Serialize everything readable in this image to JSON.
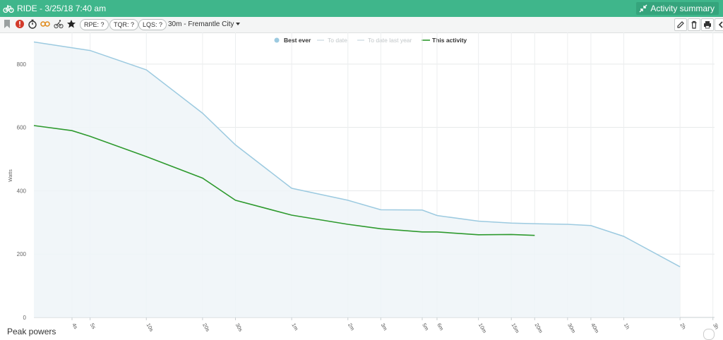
{
  "window": {
    "title": "RIDE - 3/25/18 7:40 am",
    "summary_button": "Activity summary",
    "bike_icon": "bicycle-icon",
    "collapse_icon": "collapse-arrows-icon"
  },
  "toolbar": {
    "icons": [
      "bookmark-icon",
      "alert-icon",
      "stopwatch-icon",
      "goggles-icon",
      "rider-icon",
      "star-icon"
    ],
    "rpe_label": "RPE: ?",
    "tqr_label": "TQR: ?",
    "lqs_label": "LQS: ?",
    "route_label": "30m - Fremantle City",
    "right_icons": [
      "edit-icon",
      "delete-icon",
      "print-icon",
      "back-icon"
    ]
  },
  "colors": {
    "header": "#3fb68b",
    "best_ever": "#9ccae0",
    "this_activity": "#2e9a2e",
    "faded_series": "#c8d7de"
  },
  "chart_data": {
    "type": "line",
    "ylabel": "Watts",
    "xlabel": "",
    "ylim": [
      0,
      900
    ],
    "yticks": [
      0,
      200,
      400,
      600,
      800
    ],
    "x_scale": "log",
    "grid": true,
    "legend_position": "top-center",
    "legend": [
      {
        "name": "Best ever",
        "active": true
      },
      {
        "name": "To date",
        "active": false
      },
      {
        "name": "To date last year",
        "active": false
      },
      {
        "name": "This activity",
        "active": true
      }
    ],
    "x_ticks": [
      {
        "label": "4s",
        "sec": 4
      },
      {
        "label": "5s",
        "sec": 5
      },
      {
        "label": "10s",
        "sec": 10
      },
      {
        "label": "20s",
        "sec": 20
      },
      {
        "label": "30s",
        "sec": 30
      },
      {
        "label": "1m",
        "sec": 60
      },
      {
        "label": "2m",
        "sec": 120
      },
      {
        "label": "3m",
        "sec": 180
      },
      {
        "label": "5m",
        "sec": 300
      },
      {
        "label": "6m",
        "sec": 360
      },
      {
        "label": "10m",
        "sec": 600
      },
      {
        "label": "15m",
        "sec": 900
      },
      {
        "label": "20m",
        "sec": 1200
      },
      {
        "label": "30m",
        "sec": 1800
      },
      {
        "label": "40m",
        "sec": 2400
      },
      {
        "label": "1h",
        "sec": 3600
      },
      {
        "label": "2h",
        "sec": 7200
      },
      {
        "label": "3h",
        "sec": 10800
      }
    ],
    "x_min_sec": 2.5,
    "series": [
      {
        "name": "Best ever",
        "area": true,
        "points": [
          {
            "sec": 2.5,
            "w": 870
          },
          {
            "sec": 5,
            "w": 843
          },
          {
            "sec": 10,
            "w": 782
          },
          {
            "sec": 20,
            "w": 645
          },
          {
            "sec": 30,
            "w": 545
          },
          {
            "sec": 60,
            "w": 408
          },
          {
            "sec": 120,
            "w": 370
          },
          {
            "sec": 180,
            "w": 340
          },
          {
            "sec": 300,
            "w": 339
          },
          {
            "sec": 360,
            "w": 322
          },
          {
            "sec": 600,
            "w": 304
          },
          {
            "sec": 900,
            "w": 298
          },
          {
            "sec": 1200,
            "w": 296
          },
          {
            "sec": 1800,
            "w": 294
          },
          {
            "sec": 2400,
            "w": 290
          },
          {
            "sec": 3600,
            "w": 256
          },
          {
            "sec": 7200,
            "w": 160
          }
        ]
      },
      {
        "name": "This activity",
        "area": false,
        "points": [
          {
            "sec": 2.5,
            "w": 606
          },
          {
            "sec": 4,
            "w": 590
          },
          {
            "sec": 5,
            "w": 572
          },
          {
            "sec": 10,
            "w": 508
          },
          {
            "sec": 20,
            "w": 440
          },
          {
            "sec": 30,
            "w": 370
          },
          {
            "sec": 60,
            "w": 323
          },
          {
            "sec": 120,
            "w": 294
          },
          {
            "sec": 180,
            "w": 280
          },
          {
            "sec": 300,
            "w": 270
          },
          {
            "sec": 360,
            "w": 270
          },
          {
            "sec": 600,
            "w": 261
          },
          {
            "sec": 900,
            "w": 262
          },
          {
            "sec": 1200,
            "w": 259
          }
        ]
      }
    ]
  },
  "bottom": {
    "section_label": "Peak powers"
  }
}
